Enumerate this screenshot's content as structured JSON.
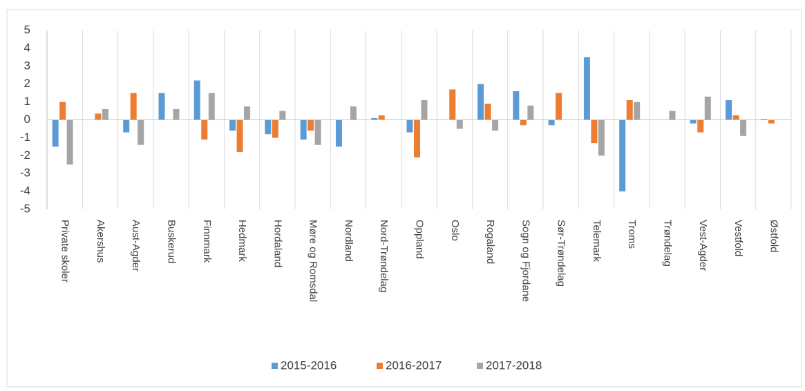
{
  "chart_data": {
    "type": "bar",
    "categories": [
      "Private skoler",
      "Akershus",
      "Aust-Agder",
      "Buskerud",
      "Finnmark",
      "Hedmark",
      "Hordaland",
      "Møre og Romsdal",
      "Nordland",
      "Nord-Trøndelag",
      "Oppland",
      "Oslo",
      "Rogaland",
      "Sogn og Fjordane",
      "Sør-Trøndelag",
      "Telemark",
      "Troms",
      "Trøndelag",
      "Vest-Agder",
      "Vestfold",
      "Østfold"
    ],
    "series": [
      {
        "name": "2015-2016",
        "color": "#5b9bd5",
        "values": [
          -1.5,
          null,
          -0.7,
          1.5,
          2.2,
          -0.6,
          -0.8,
          -1.1,
          -1.5,
          0.1,
          -0.7,
          null,
          2.0,
          1.6,
          -0.3,
          3.5,
          -4.0,
          null,
          -0.2,
          1.1,
          0.05
        ]
      },
      {
        "name": "2016-2017",
        "color": "#ed7d31",
        "values": [
          1.0,
          0.35,
          1.5,
          null,
          -1.1,
          -1.8,
          -1.0,
          -0.6,
          null,
          0.25,
          -2.1,
          1.7,
          0.9,
          -0.3,
          1.5,
          -1.3,
          1.1,
          null,
          -0.7,
          0.25,
          -0.2
        ]
      },
      {
        "name": "2017-2018",
        "color": "#a5a5a5",
        "values": [
          -2.5,
          0.6,
          -1.4,
          0.6,
          1.5,
          0.75,
          0.5,
          -1.4,
          0.75,
          null,
          1.1,
          -0.5,
          -0.6,
          0.8,
          null,
          -2.0,
          1.0,
          0.5,
          1.3,
          -0.9,
          null
        ]
      }
    ],
    "ylim": [
      -5,
      5
    ],
    "yticks": [
      -5,
      -4,
      -3,
      -2,
      -1,
      0,
      1,
      2,
      3,
      4,
      5
    ],
    "legend": "bottom"
  }
}
